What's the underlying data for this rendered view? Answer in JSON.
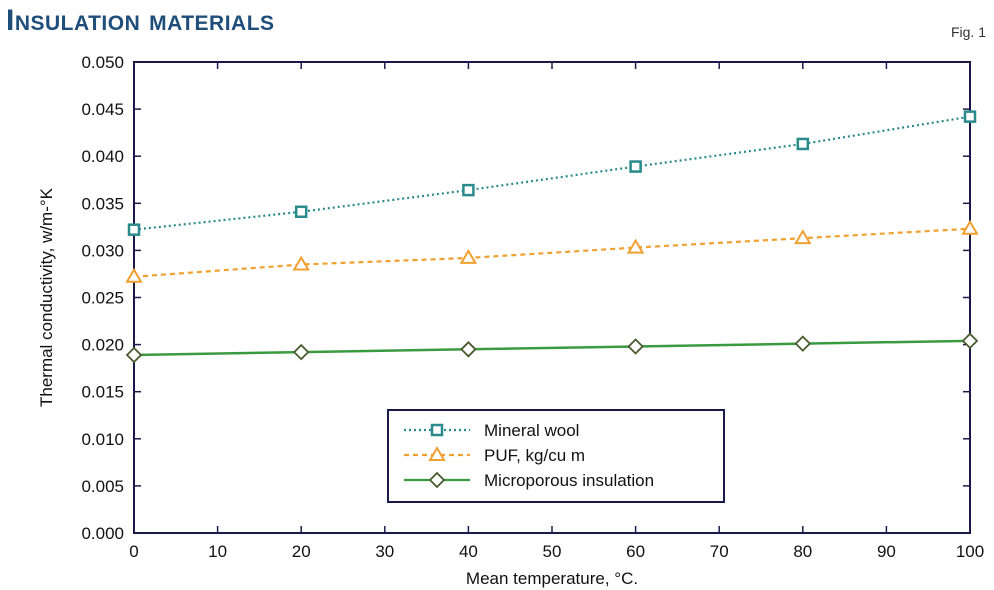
{
  "header": {
    "title": "Insulation materials",
    "fig_label": "Fig. 1"
  },
  "chart_data": {
    "type": "line",
    "xlabel": "Mean temperature, °C.",
    "ylabel": "Thermal conductivity, w/m-°K",
    "xlim": [
      0,
      100
    ],
    "ylim": [
      0.0,
      0.05
    ],
    "xticks": [
      0,
      10,
      20,
      30,
      40,
      50,
      60,
      70,
      80,
      90,
      100
    ],
    "yticks": [
      0.0,
      0.005,
      0.01,
      0.015,
      0.02,
      0.025,
      0.03,
      0.035,
      0.04,
      0.045,
      0.05
    ],
    "x": [
      0,
      20,
      40,
      60,
      80,
      100
    ],
    "series": [
      {
        "name": "Mineral wool",
        "values": [
          0.0322,
          0.0341,
          0.0364,
          0.0389,
          0.0413,
          0.0442
        ],
        "color": "#2a8a8c",
        "marker": "square",
        "dash": "dotted"
      },
      {
        "name": "PUF, kg/cu m",
        "values": [
          0.0272,
          0.0285,
          0.0292,
          0.0303,
          0.0313,
          0.0323
        ],
        "color": "#f0a030",
        "marker": "triangle",
        "dash": "dashed"
      },
      {
        "name": "Microporous insulation",
        "values": [
          0.0189,
          0.0192,
          0.0195,
          0.0198,
          0.0201,
          0.0204
        ],
        "color": "#3a9a40",
        "marker": "diamond",
        "dash": "solid"
      }
    ],
    "legend_position": "bottom-center",
    "grid": false
  },
  "colors": {
    "title": "#1f4e7a",
    "axis": "#1a1a4a",
    "legend_border": "#1a1a4a"
  }
}
